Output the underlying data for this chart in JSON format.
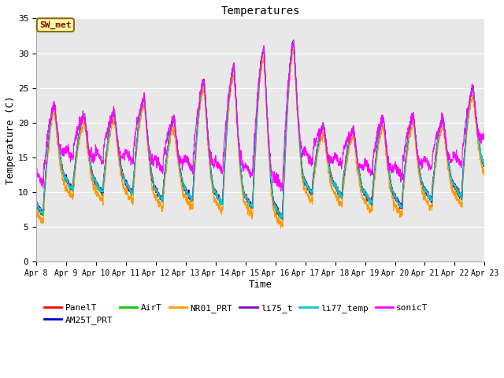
{
  "title": "Temperatures",
  "xlabel": "Time",
  "ylabel": "Temperature (C)",
  "ylim": [
    0,
    35
  ],
  "yticks": [
    0,
    5,
    10,
    15,
    20,
    25,
    30,
    35
  ],
  "n_days": 15,
  "annotation_text": "SW_met",
  "annotation_color": "#8B0000",
  "annotation_bg": "#FFFFAA",
  "annotation_border": "#8B6914",
  "bg_color": "#E8E8E8",
  "fig_bg_color": "#FFFFFF",
  "grid_color": "#FFFFFF",
  "series_colors": {
    "PanelT": "#FF0000",
    "AM25T_PRT": "#0000CC",
    "AirT": "#00CC00",
    "NR01_PRT": "#FF9900",
    "li75_t": "#8800CC",
    "li77_temp": "#00CCCC",
    "sonicT": "#FF00FF"
  },
  "x_tick_labels": [
    "Apr 8",
    "Apr 9",
    "Apr 10",
    "Apr 11",
    "Apr 12",
    "Apr 13",
    "Apr 14",
    "Apr 15",
    "Apr 16",
    "Apr 17",
    "Apr 18",
    "Apr 19",
    "Apr 20",
    "Apr 21",
    "Apr 22",
    "Apr 23"
  ],
  "day_peaks": [
    22.5,
    21.0,
    21.5,
    23.5,
    20.5,
    26.0,
    28.0,
    30.5,
    31.5,
    19.5,
    19.0,
    20.5,
    21.0,
    20.5,
    25.0,
    19.0
  ],
  "day_nights": [
    8.5,
    12.0,
    11.5,
    11.5,
    10.5,
    10.5,
    10.0,
    9.5,
    8.0,
    11.5,
    11.0,
    10.0,
    9.5,
    10.5,
    11.0,
    14.0
  ]
}
